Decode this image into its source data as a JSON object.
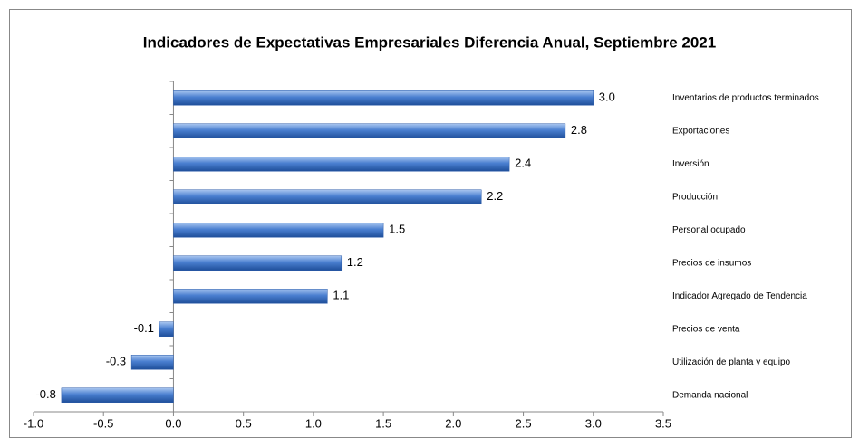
{
  "chart_data": {
    "type": "bar",
    "orientation": "horizontal",
    "title": "Indicadores de Expectativas Empresariales Diferencia Anual, Septiembre 2021",
    "categories": [
      "Inventarios de productos terminados",
      "Exportaciones",
      "Inversión",
      "Producción",
      "Personal ocupado",
      "Precios de insumos",
      "Indicador Agregado de Tendencia",
      "Precios de venta",
      "Utilización de planta y equipo",
      "Demanda nacional"
    ],
    "values": [
      3.0,
      2.8,
      2.4,
      2.2,
      1.5,
      1.2,
      1.1,
      -0.1,
      -0.3,
      -0.8
    ],
    "value_labels": [
      "3.0",
      "2.8",
      "2.4",
      "2.2",
      "1.5",
      "1.2",
      "1.1",
      "-0.1",
      "-0.3",
      "-0.8"
    ],
    "color": "#4a7fd0",
    "xlim": [
      -1,
      3.5
    ],
    "xticks": [
      {
        "value": -1,
        "label": "-1.0"
      },
      -0.5,
      {
        "value": 0,
        "label": "0.0"
      },
      0.5,
      {
        "value": 1,
        "label": "1.0"
      },
      1.5,
      {
        "value": 2,
        "label": "2.0"
      },
      2.5,
      {
        "value": 3,
        "label": "3.0"
      },
      3.5
    ],
    "grid": false
  }
}
